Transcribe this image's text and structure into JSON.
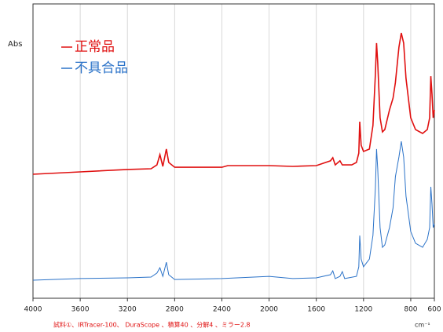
{
  "chart_data": {
    "type": "line",
    "y_label": "Abs",
    "x_label": "cm⁻¹",
    "footnote": "試料①、IRTracer-100、 DuraScope 、積算40 、分解4 、ミラー2.8",
    "xlim": [
      4000,
      600
    ],
    "xticks": [
      4000,
      3600,
      3200,
      2800,
      2400,
      2000,
      1600,
      1200,
      800,
      600
    ],
    "ylim": [
      0,
      16
    ],
    "grid": true,
    "series": [
      {
        "name": "正常品",
        "color": "#e01010",
        "x": [
          4000,
          3600,
          3200,
          3000,
          2950,
          2925,
          2900,
          2870,
          2850,
          2800,
          2400,
          2350,
          2000,
          1800,
          1600,
          1480,
          1460,
          1440,
          1400,
          1380,
          1300,
          1260,
          1240,
          1232,
          1220,
          1200,
          1150,
          1120,
          1100,
          1090,
          1080,
          1060,
          1040,
          1020,
          980,
          950,
          930,
          900,
          880,
          860,
          840,
          800,
          760,
          700,
          660,
          640,
          630,
          620,
          610,
          600
        ],
        "values": [
          6.74,
          6.87,
          7.0,
          7.04,
          7.25,
          7.81,
          7.17,
          8.11,
          7.38,
          7.12,
          7.12,
          7.21,
          7.21,
          7.17,
          7.21,
          7.47,
          7.64,
          7.25,
          7.47,
          7.25,
          7.25,
          7.38,
          7.89,
          9.6,
          8.32,
          7.98,
          8.11,
          9.39,
          12.16,
          13.87,
          12.8,
          9.81,
          9.04,
          9.17,
          10.24,
          10.88,
          11.73,
          13.65,
          14.42,
          13.87,
          11.95,
          9.81,
          9.17,
          8.96,
          9.17,
          9.81,
          12.07,
          11.09,
          9.81,
          10.24
        ]
      },
      {
        "name": "不具合品",
        "color": "#2a72c8",
        "x": [
          4000,
          3600,
          3200,
          3000,
          2950,
          2925,
          2900,
          2870,
          2850,
          2800,
          2400,
          2000,
          1800,
          1600,
          1480,
          1460,
          1440,
          1400,
          1380,
          1360,
          1260,
          1240,
          1232,
          1220,
          1200,
          1150,
          1120,
          1100,
          1090,
          1080,
          1060,
          1040,
          1020,
          980,
          950,
          930,
          900,
          880,
          860,
          840,
          800,
          760,
          700,
          660,
          640,
          630,
          620,
          610,
          600
        ],
        "values": [
          0.98,
          1.07,
          1.11,
          1.15,
          1.37,
          1.66,
          1.19,
          1.96,
          1.28,
          1.02,
          1.07,
          1.19,
          1.07,
          1.11,
          1.28,
          1.49,
          1.07,
          1.19,
          1.45,
          1.07,
          1.19,
          1.71,
          3.41,
          2.13,
          1.71,
          2.13,
          3.41,
          5.97,
          8.11,
          7.04,
          3.84,
          2.77,
          2.9,
          3.84,
          4.91,
          6.61,
          7.68,
          8.53,
          7.68,
          5.55,
          3.63,
          2.99,
          2.77,
          3.2,
          3.84,
          6.06,
          5.12,
          3.84,
          4.05
        ]
      }
    ]
  }
}
